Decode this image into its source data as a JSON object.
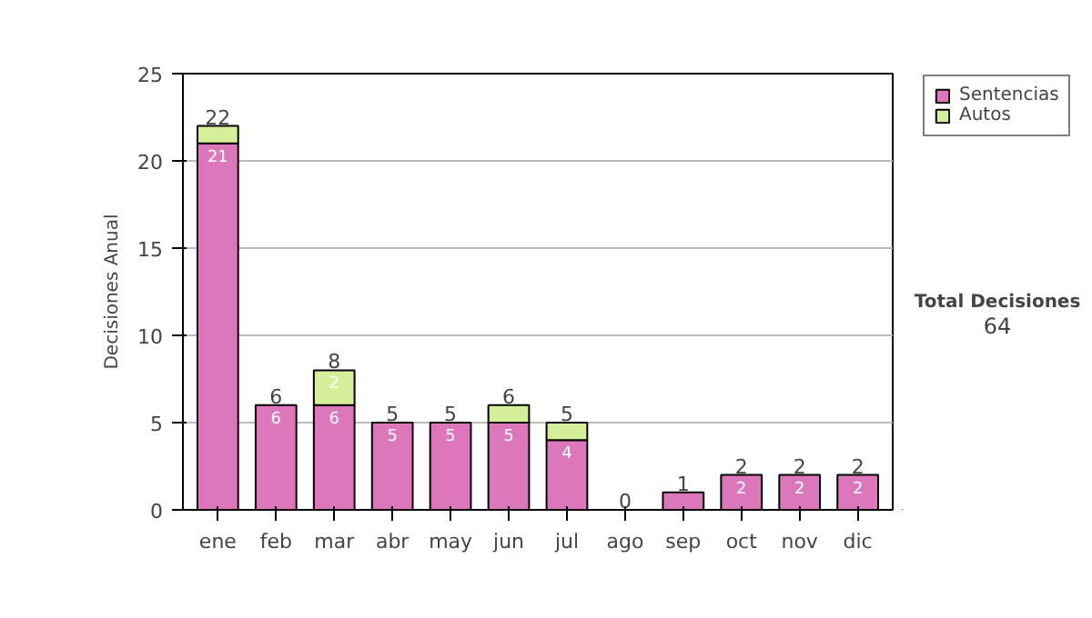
{
  "chart_data": {
    "type": "bar",
    "stacked": true,
    "ylabel": "Decisiones Anual",
    "categories": [
      "ene",
      "feb",
      "mar",
      "abr",
      "may",
      "jun",
      "jul",
      "ago",
      "sep",
      "oct",
      "nov",
      "dic"
    ],
    "series": [
      {
        "name": "Sentencias",
        "color": "#dd77bb",
        "values": [
          21,
          6,
          6,
          5,
          5,
          5,
          4,
          0,
          1,
          2,
          2,
          2
        ],
        "value_labels": [
          "21",
          "6",
          "6",
          "5",
          "5",
          "5",
          "4",
          null,
          null,
          "2",
          "2",
          "2"
        ]
      },
      {
        "name": "Autos",
        "color": "#d4ee99",
        "values": [
          1,
          0,
          2,
          0,
          0,
          1,
          1,
          0,
          0,
          0,
          0,
          0
        ],
        "value_labels": [
          null,
          null,
          "2",
          null,
          null,
          null,
          null,
          null,
          null,
          null,
          null,
          null
        ]
      }
    ],
    "totals": [
      "22",
      "6",
      "8",
      "5",
      "5",
      "6",
      "5",
      "0",
      "1",
      "2",
      "2",
      "2"
    ],
    "ylim": [
      0,
      25
    ],
    "yticks": [
      0,
      5,
      10,
      15,
      20,
      25
    ],
    "grid": "y",
    "legend": "right",
    "annotations": [
      "Total Decisiones",
      "64"
    ]
  }
}
